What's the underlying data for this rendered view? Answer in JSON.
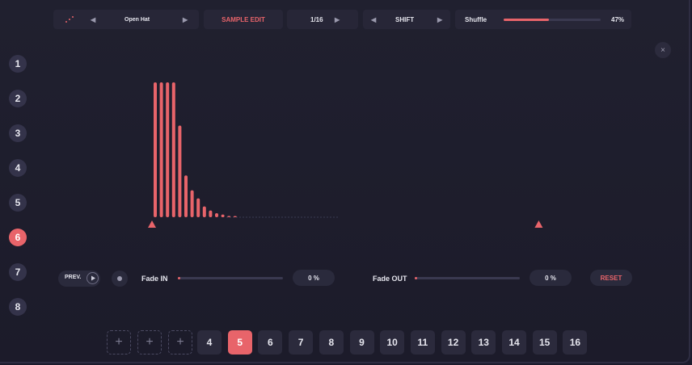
{
  "topbar": {
    "instrument": "Open Hat",
    "mode": "SAMPLE EDIT",
    "division": "1/16",
    "shift_label": "SHIFT",
    "shuffle_label": "Shuffle",
    "shuffle_value": "47%",
    "shuffle_fraction": 0.47
  },
  "sidebar": {
    "pads": [
      {
        "label": "1"
      },
      {
        "label": "2"
      },
      {
        "label": "3"
      },
      {
        "label": "4"
      },
      {
        "label": "5"
      },
      {
        "label": "6",
        "active": true
      },
      {
        "label": "7"
      },
      {
        "label": "8"
      }
    ]
  },
  "close_icon": "×",
  "controls": {
    "prev_label": "PREV.",
    "fade_in_label": "Fade IN",
    "fade_in_value": "0 %",
    "fade_out_label": "Fade OUT",
    "fade_out_value": "0 %",
    "reset_label": "RESET"
  },
  "waveform": {
    "bars": [
      1.0,
      1.0,
      1.0,
      1.0,
      0.68,
      0.31,
      0.2,
      0.14,
      0.08,
      0.05,
      0.03,
      0.02,
      0.01,
      0.005
    ],
    "color": "#e8646a",
    "start_marker": 0.0,
    "end_marker": 0.92
  },
  "steps": {
    "add_icon": "+",
    "items": [
      "4",
      "5",
      "6",
      "7",
      "8",
      "9",
      "10",
      "11",
      "12",
      "13",
      "14",
      "15",
      "16"
    ],
    "active": "5"
  },
  "colors": {
    "accent": "#e8646a",
    "panel": "#272637",
    "background": "#1c1b2c"
  }
}
